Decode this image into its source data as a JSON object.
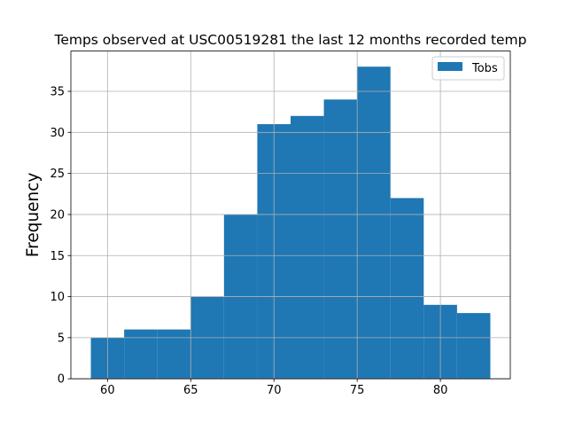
{
  "chart_data": {
    "type": "bar",
    "title": "Temps observed at USC00519281 the last 12 months recorded temp",
    "xlabel": "",
    "ylabel": "Frequency",
    "bins": [
      {
        "x0": 59,
        "x1": 61,
        "count": 5
      },
      {
        "x0": 61,
        "x1": 63,
        "count": 6
      },
      {
        "x0": 63,
        "x1": 65,
        "count": 6
      },
      {
        "x0": 65,
        "x1": 67,
        "count": 10
      },
      {
        "x0": 67,
        "x1": 69,
        "count": 20
      },
      {
        "x0": 69,
        "x1": 71,
        "count": 31
      },
      {
        "x0": 71,
        "x1": 73,
        "count": 32
      },
      {
        "x0": 73,
        "x1": 75,
        "count": 34
      },
      {
        "x0": 75,
        "x1": 77,
        "count": 38
      },
      {
        "x0": 77,
        "x1": 79,
        "count": 22
      },
      {
        "x0": 79,
        "x1": 81,
        "count": 9
      },
      {
        "x0": 81,
        "x1": 83,
        "count": 8
      }
    ],
    "series": [
      {
        "name": "Tobs"
      }
    ],
    "xlim": [
      57.8,
      84.2
    ],
    "ylim": [
      0,
      39.9
    ],
    "xticks": [
      60,
      65,
      70,
      75,
      80
    ],
    "yticks": [
      0,
      5,
      10,
      15,
      20,
      25,
      30,
      35
    ],
    "grid": true,
    "legend_position": "top-right",
    "colors": {
      "bar": "#1f77b4",
      "grid": "#b0b0b0",
      "axis": "#000000"
    }
  }
}
